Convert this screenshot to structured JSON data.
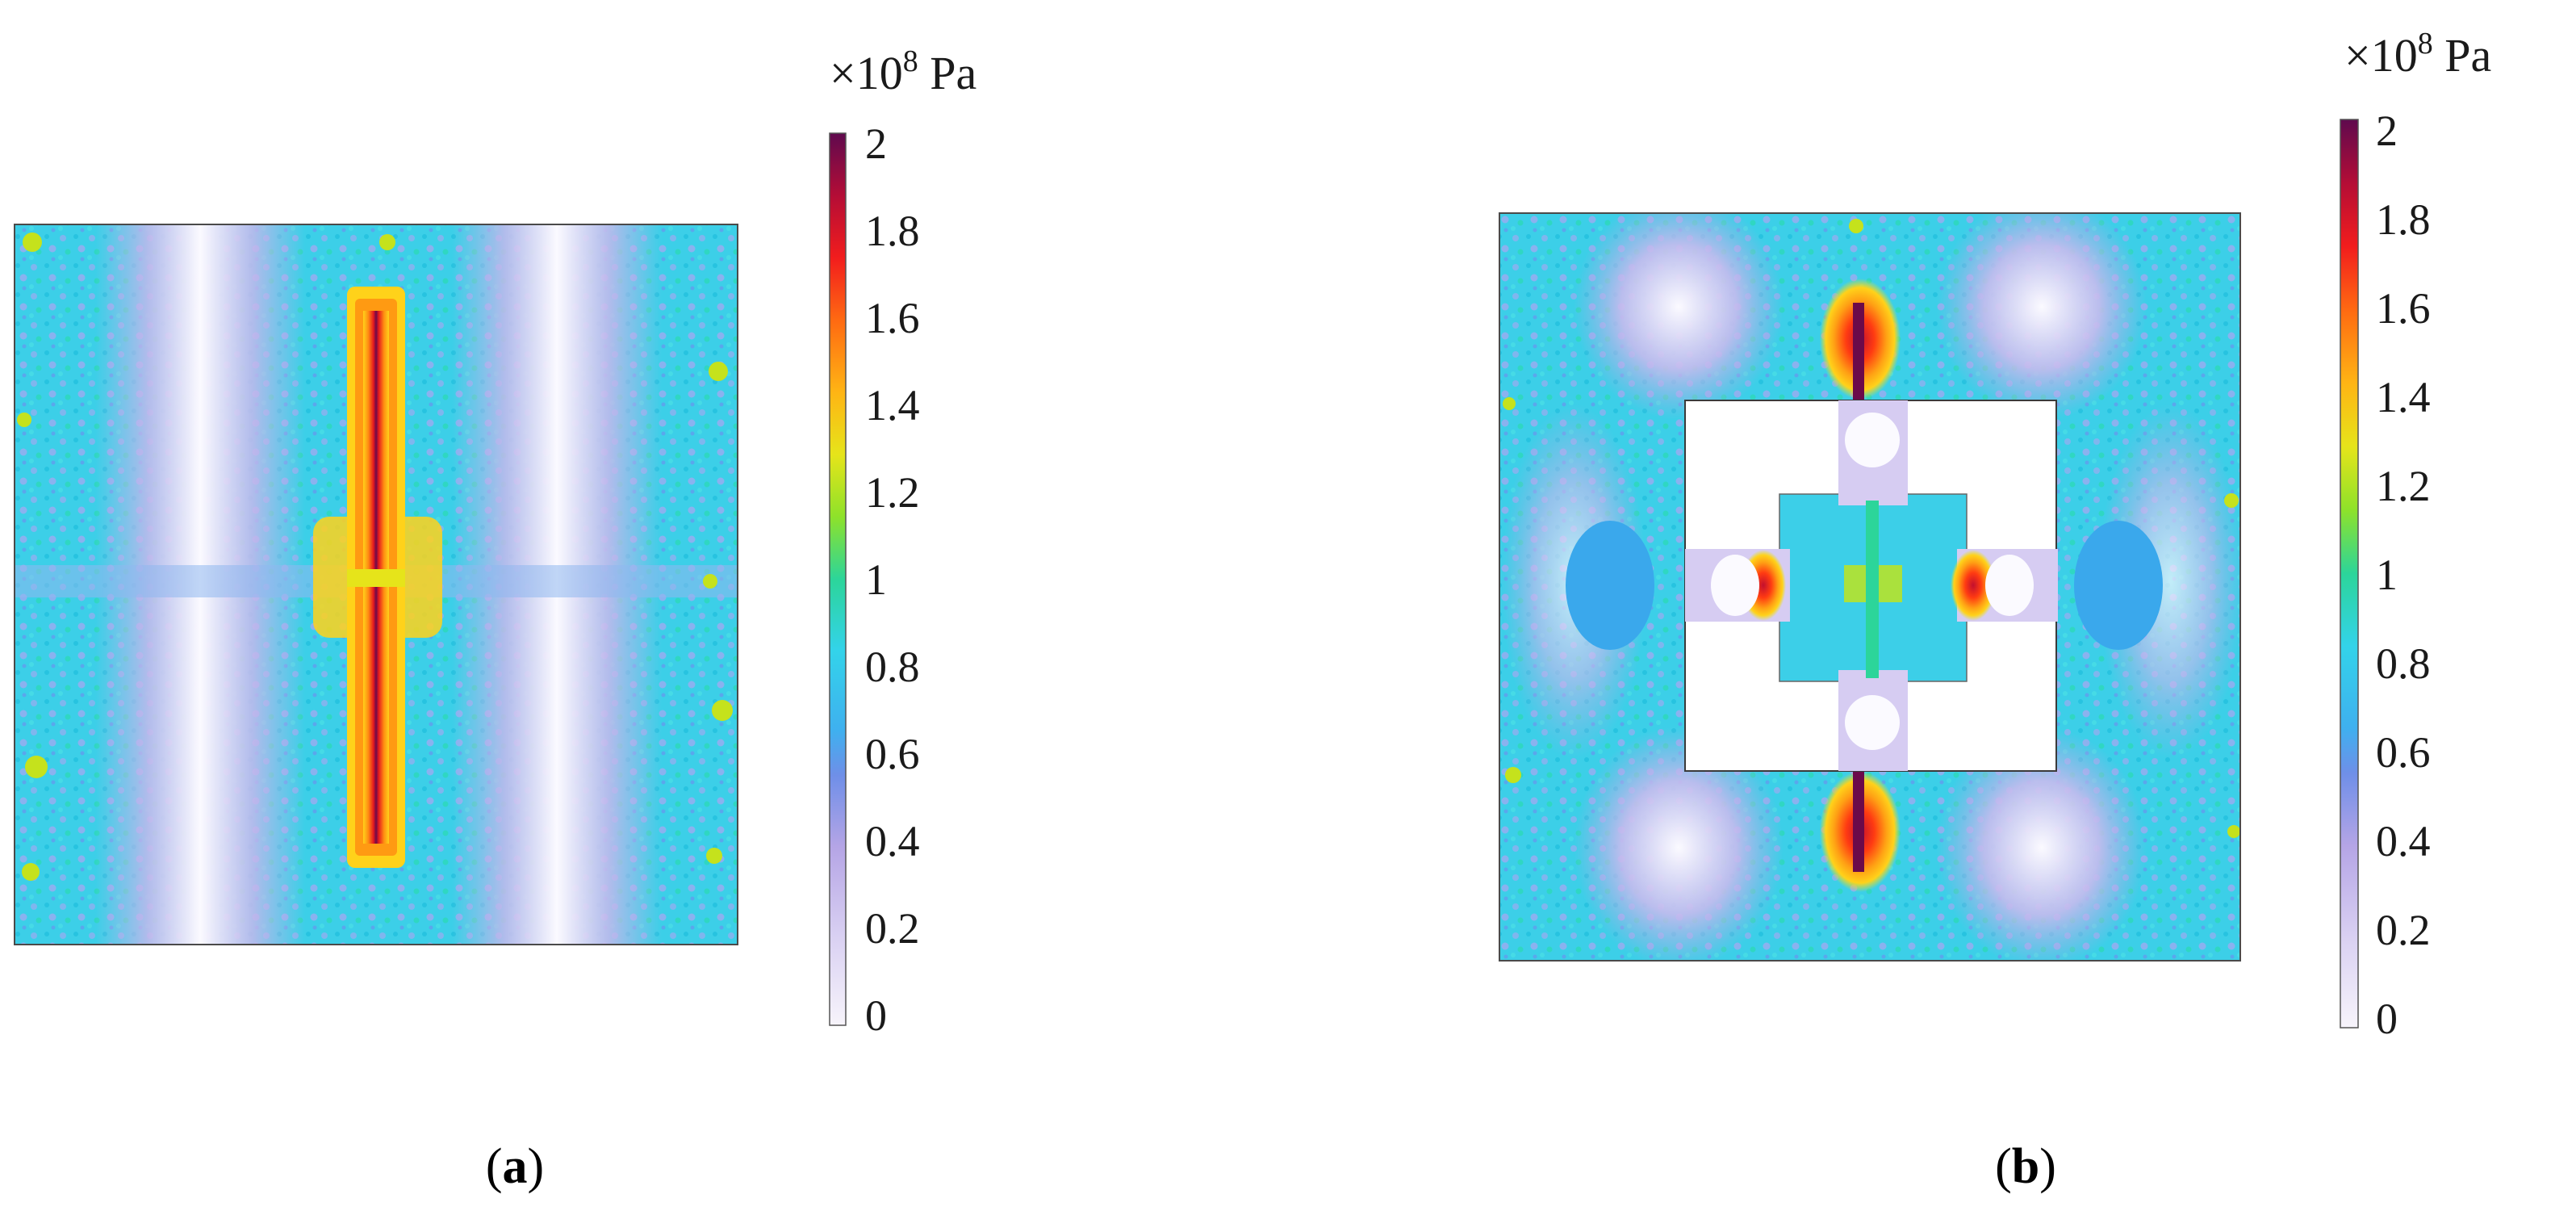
{
  "panels": [
    {
      "id": "a",
      "label": "a",
      "colorbar": {
        "unit_prefix": "×10",
        "unit_exponent": "8",
        "unit_suffix": " Pa",
        "ticks": [
          "2",
          "1.8",
          "1.6",
          "1.4",
          "1.2",
          "1",
          "0.8",
          "0.6",
          "0.4",
          "0.2",
          "0"
        ]
      }
    },
    {
      "id": "b",
      "label": "b",
      "colorbar": {
        "unit_prefix": "×10",
        "unit_exponent": "8",
        "unit_suffix": " Pa",
        "ticks": [
          "2",
          "1.8",
          "1.6",
          "1.4",
          "1.2",
          "1",
          "0.8",
          "0.6",
          "0.4",
          "0.2",
          "0"
        ]
      }
    }
  ],
  "colormap": [
    "#f7f4fb",
    "#b9a8e6",
    "#3fb5ee",
    "#35d9e6",
    "#27d07a",
    "#d3e61c",
    "#ffd21a",
    "#ff9a12",
    "#ff3b12",
    "#c30f2e",
    "#6b0a4a"
  ]
}
